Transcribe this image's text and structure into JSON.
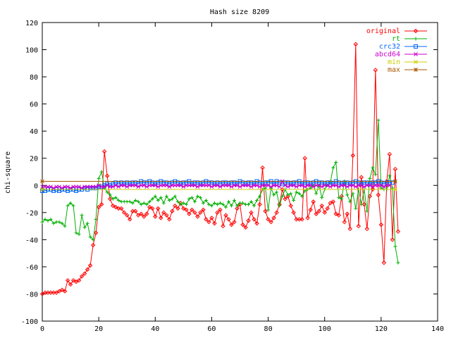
{
  "chart_data": {
    "type": "line",
    "title": "Hash size 8209",
    "xlabel": "",
    "ylabel": "chi-square",
    "xlim": [
      0,
      140
    ],
    "ylim": [
      -100,
      120
    ],
    "x_ticks": [
      0,
      20,
      40,
      60,
      80,
      100,
      120,
      140
    ],
    "y_ticks": [
      -100,
      -80,
      -60,
      -40,
      -20,
      0,
      20,
      40,
      60,
      80,
      100,
      120
    ],
    "grid": false,
    "legend_position": "top-right",
    "series": [
      {
        "name": "original",
        "color": "#ff0000",
        "marker": "diamond",
        "values": [
          -80,
          -79,
          -79,
          -79,
          -79,
          -79,
          -78,
          -77,
          -78,
          -70,
          -73,
          -70,
          -71,
          -70,
          -67,
          -65,
          -62,
          -59,
          -44,
          -35,
          -16,
          -14,
          25,
          7,
          -10,
          -15,
          -16,
          -17,
          -17,
          -20,
          -22,
          -25,
          -19,
          -19,
          -22,
          -21,
          -23,
          -21,
          -16,
          -17,
          -23,
          -17,
          -24,
          -20,
          -22,
          -25,
          -19,
          -15,
          -17,
          -13,
          -17,
          -18,
          -21,
          -18,
          -20,
          -23,
          -20,
          -18,
          -25,
          -27,
          -24,
          -28,
          -20,
          -18,
          -30,
          -22,
          -25,
          -29,
          -27,
          -17,
          -14,
          -29,
          -31,
          -26,
          -20,
          -25,
          -28,
          -14,
          13,
          -19,
          -25,
          -27,
          -24,
          -20,
          -14,
          -3,
          -10,
          -8,
          -15,
          -20,
          -25,
          -25,
          -25,
          20,
          -24,
          -18,
          -12,
          -21,
          -19,
          -15,
          -20,
          -17,
          -13,
          -12,
          -21,
          -22,
          -8,
          -27,
          -21,
          -32,
          22,
          104,
          -30,
          6,
          -14,
          -32,
          -8,
          -3,
          85,
          -7,
          -29,
          -57,
          3,
          23,
          -40,
          12,
          -34
        ],
        "x_start": 0
      },
      {
        "name": "rt",
        "color": "#00b000",
        "marker": "plus",
        "values": [
          -27,
          -25,
          -26,
          -25,
          -28,
          -27,
          -27,
          -28,
          -30,
          -15,
          -13,
          -15,
          -35,
          -36,
          -22,
          -31,
          -28,
          -38,
          -40,
          -25,
          5,
          10,
          -2,
          -5,
          -7,
          -10,
          -9,
          -11,
          -12,
          -12,
          -12,
          -12,
          -13,
          -11,
          -12,
          -14,
          -13,
          -14,
          -12,
          -10,
          -8,
          -11,
          -9,
          -13,
          -8,
          -11,
          -10,
          -8,
          -12,
          -14,
          -13,
          -14,
          -10,
          -9,
          -12,
          -8,
          -9,
          -13,
          -11,
          -14,
          -15,
          -13,
          -14,
          -13,
          -14,
          -16,
          -12,
          -15,
          -11,
          -15,
          -13,
          -13,
          -14,
          -14,
          -12,
          -15,
          -11,
          -8,
          -3,
          -2,
          -18,
          -2,
          -7,
          -5,
          -15,
          -8,
          -3,
          -7,
          -6,
          -11,
          -5,
          -6,
          -8,
          -4,
          -3,
          -2,
          0,
          -6,
          0,
          -9,
          -3,
          0,
          2,
          13,
          17,
          -9,
          -10,
          3,
          -7,
          -12,
          -6,
          -17,
          -3,
          -14,
          -3,
          -19,
          5,
          13,
          8,
          48,
          -2,
          -3,
          -3,
          7,
          -2,
          -45,
          -57
        ],
        "x_start": 0
      },
      {
        "name": "crc32",
        "color": "#0066ff",
        "marker": "square",
        "values": [
          -4,
          -4,
          -3,
          -3,
          -4,
          -3,
          -4,
          -3,
          -3,
          -4,
          -3,
          -3,
          -4,
          -3,
          -3,
          -2,
          -3,
          -2,
          -2,
          -2,
          -1,
          -1,
          0,
          1,
          0,
          1,
          2,
          1,
          2,
          1,
          2,
          1,
          2,
          2,
          1,
          3,
          2,
          2,
          3,
          2,
          1,
          2,
          3,
          2,
          2,
          1,
          2,
          3,
          2,
          1,
          2,
          2,
          3,
          1,
          2,
          2,
          1,
          2,
          3,
          2,
          2,
          1,
          2,
          1,
          2,
          2,
          1,
          2,
          2,
          1,
          3,
          2,
          1,
          2,
          2,
          1,
          3,
          2,
          1,
          2,
          2,
          3,
          1,
          3,
          2,
          1,
          2,
          2,
          1,
          2,
          2,
          3,
          1,
          2,
          2,
          1,
          2,
          3,
          2,
          2,
          1,
          2,
          2,
          1,
          3,
          2,
          1,
          2,
          2,
          1,
          2,
          3,
          2,
          1,
          2,
          2,
          1,
          2,
          2,
          3,
          2,
          1,
          2,
          2,
          2
        ],
        "x_start": 0
      },
      {
        "name": "abcd64",
        "color": "#cc00cc",
        "marker": "x",
        "values": [
          -1,
          -1,
          -1,
          -1,
          -2,
          -1,
          -1,
          -2,
          -1,
          -1,
          -2,
          -1,
          -1,
          -1,
          -2,
          -1,
          -1,
          -1,
          -1,
          -1,
          0,
          -1,
          -1,
          0,
          -1,
          -1,
          0,
          -1,
          0,
          0,
          -1,
          0,
          0,
          0,
          -1,
          0,
          0,
          -1,
          0,
          0,
          0,
          -1,
          0,
          0,
          0,
          -1,
          0,
          0,
          0,
          0,
          -1,
          0,
          0,
          0,
          0,
          -1,
          0,
          0,
          0,
          0,
          -1,
          0,
          0,
          -1,
          0,
          0,
          0,
          -1,
          0,
          0,
          -1,
          0,
          0,
          0,
          -1,
          0,
          0,
          -1,
          0,
          0,
          0,
          -1,
          0,
          0,
          -1,
          3,
          0,
          -1,
          0,
          0,
          -1,
          0,
          0,
          -1,
          0,
          0,
          -1,
          0,
          0,
          -1,
          0,
          0,
          -1,
          0,
          0,
          -1,
          0,
          0,
          -1,
          0,
          0,
          -1,
          0,
          0,
          -1,
          0,
          0,
          -1,
          0,
          0,
          0,
          -1,
          0,
          0
        ],
        "x_start": 0
      },
      {
        "name": "min",
        "color": "#cccc00",
        "marker": "star",
        "values": [
          -3,
          -3
        ],
        "x": [
          0,
          125
        ]
      },
      {
        "name": "max",
        "color": "#aa5500",
        "marker": "asterisk",
        "values": [
          3,
          3
        ],
        "x": [
          0,
          125
        ]
      }
    ]
  }
}
